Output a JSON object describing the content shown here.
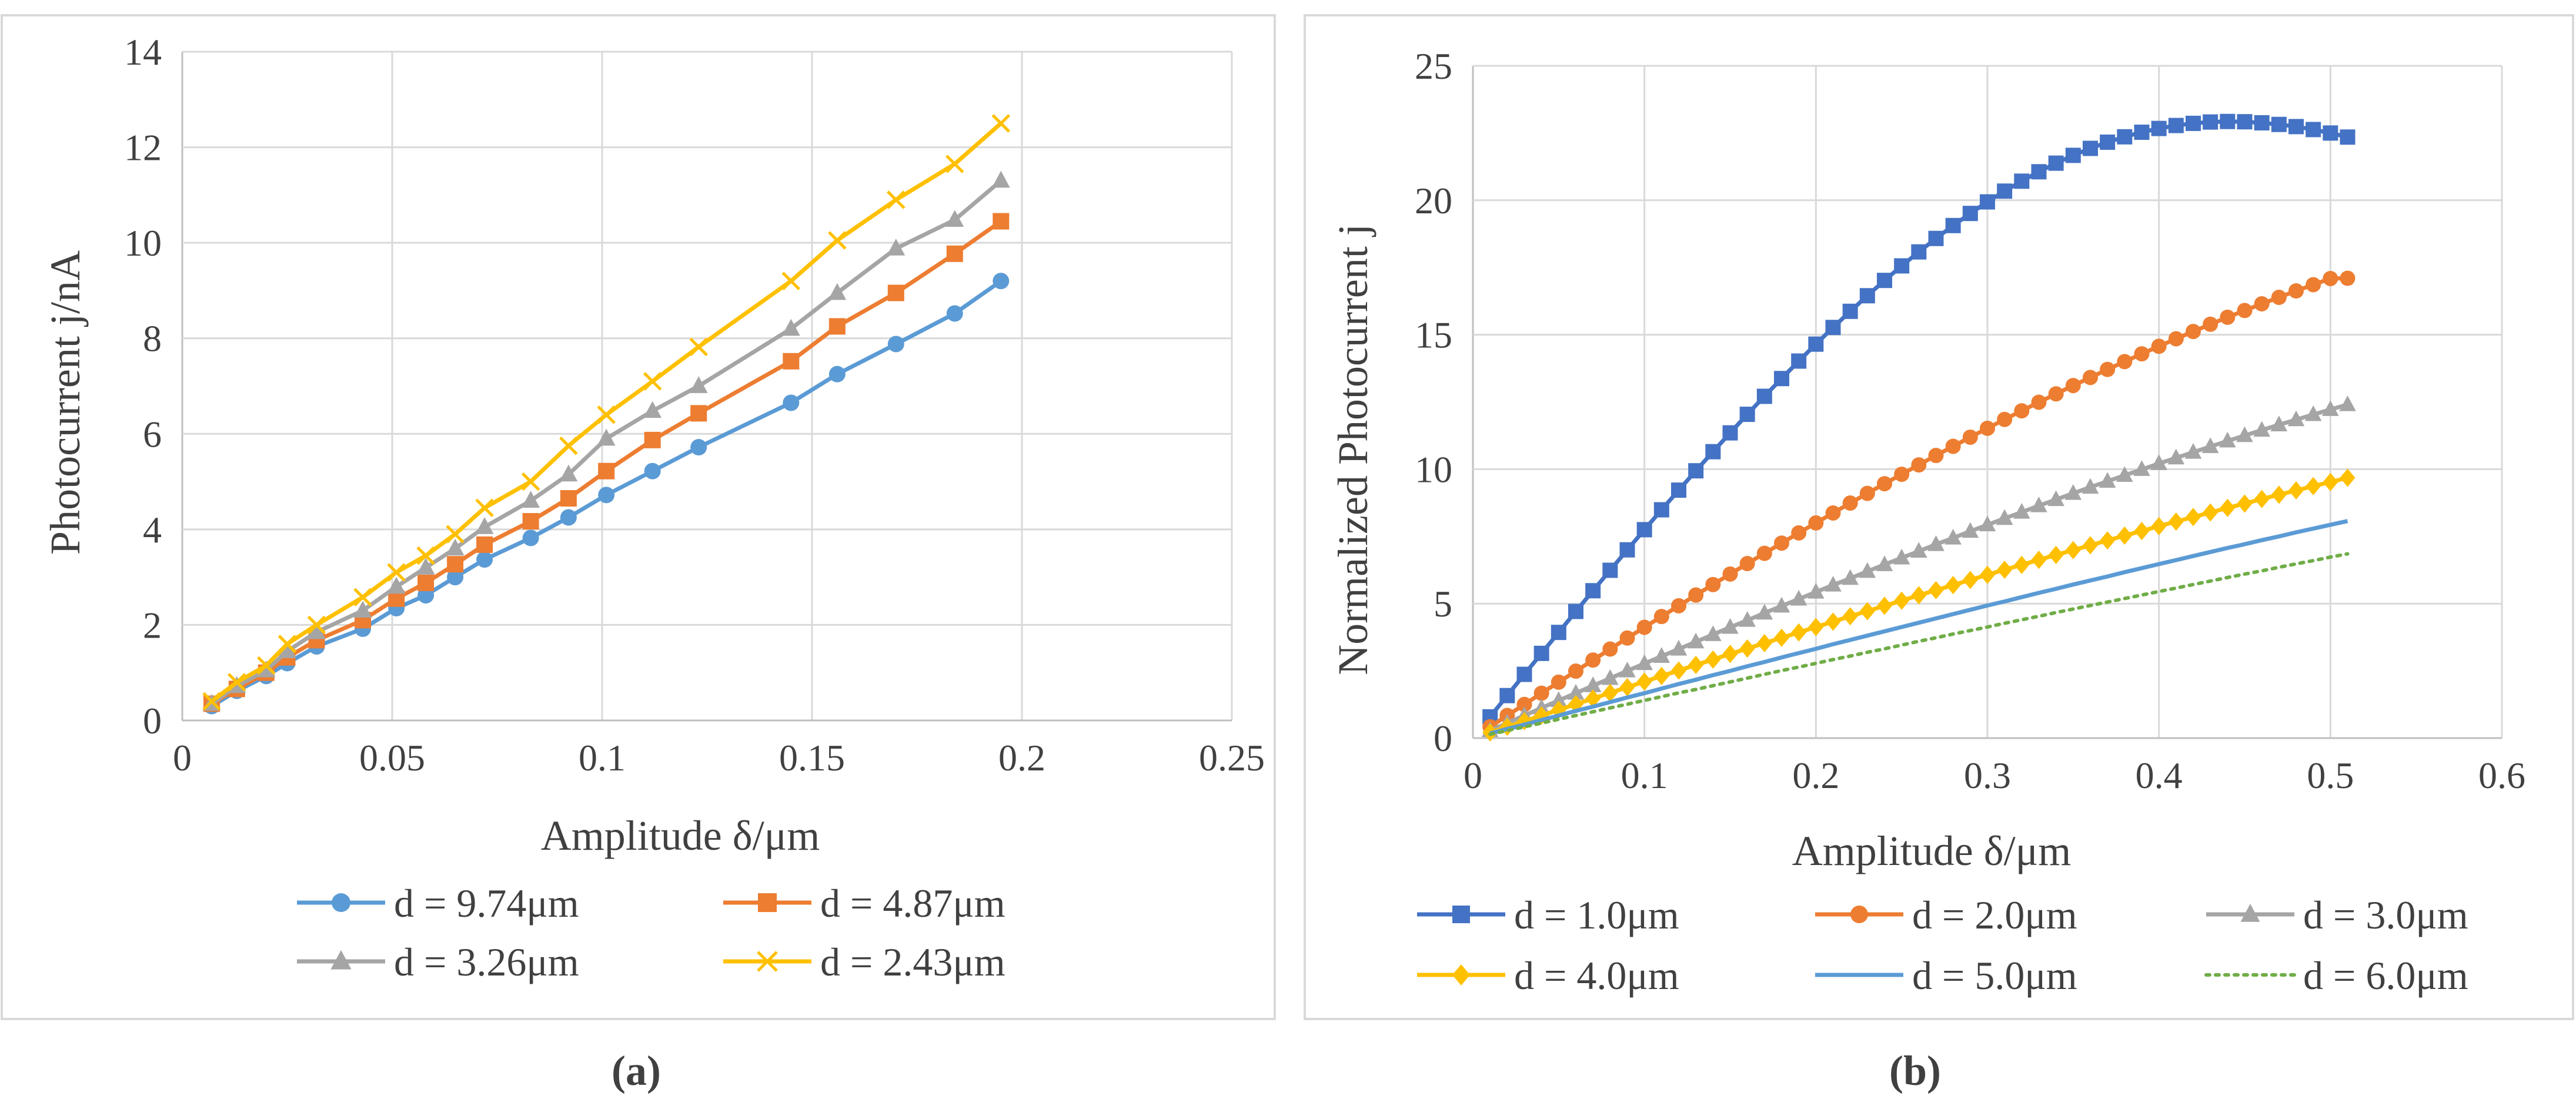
{
  "figure": {
    "label_a": "(a)",
    "label_b": "(b)"
  },
  "chart_data": [
    {
      "id": "a",
      "type": "line",
      "title": "",
      "xlabel": "Amplitude δ/μm",
      "ylabel": "Photocurrent  j/nA",
      "xlim": [
        0,
        0.25
      ],
      "ylim": [
        0,
        14
      ],
      "xticks": [
        0,
        0.05,
        0.1,
        0.15,
        0.2,
        0.25
      ],
      "xtick_labels": [
        "0",
        "0.05",
        "0.1",
        "0.15",
        "0.2",
        "0.25"
      ],
      "yticks": [
        0,
        2,
        4,
        6,
        8,
        10,
        12,
        14
      ],
      "ytick_labels": [
        "0",
        "2",
        "4",
        "6",
        "8",
        "10",
        "12",
        "14"
      ],
      "grid": true,
      "legend_position": "bottom",
      "x": [
        0.007,
        0.013,
        0.02,
        0.025,
        0.032,
        0.043,
        0.051,
        0.058,
        0.065,
        0.072,
        0.083,
        0.092,
        0.101,
        0.112,
        0.123,
        0.145,
        0.156,
        0.17,
        0.184,
        0.195
      ],
      "series": [
        {
          "name": "d = 9.74μm",
          "color": "#5B9BD5",
          "marker": "circle",
          "values": [
            0.3,
            0.62,
            0.93,
            1.2,
            1.55,
            1.92,
            2.35,
            2.62,
            3.0,
            3.37,
            3.82,
            4.25,
            4.72,
            5.22,
            5.72,
            6.65,
            7.25,
            7.88,
            8.52,
            9.2
          ]
        },
        {
          "name": "d = 4.87μm",
          "color": "#ED7D31",
          "marker": "square",
          "values": [
            0.35,
            0.66,
            1.0,
            1.32,
            1.68,
            2.1,
            2.55,
            2.88,
            3.27,
            3.68,
            4.17,
            4.65,
            5.22,
            5.87,
            6.43,
            7.52,
            8.25,
            8.95,
            9.77,
            10.45
          ]
        },
        {
          "name": "d = 3.26μm",
          "color": "#A5A5A5",
          "marker": "triangle",
          "values": [
            0.35,
            0.72,
            1.05,
            1.45,
            1.85,
            2.3,
            2.8,
            3.2,
            3.6,
            4.05,
            4.6,
            5.15,
            5.9,
            6.48,
            7.0,
            8.2,
            8.95,
            9.88,
            10.48,
            11.3
          ]
        },
        {
          "name": "d = 2.43μm",
          "color": "#FFC000",
          "marker": "x",
          "values": [
            0.4,
            0.8,
            1.15,
            1.6,
            2.0,
            2.58,
            3.1,
            3.45,
            3.9,
            4.45,
            5.0,
            5.75,
            6.4,
            7.1,
            7.82,
            9.2,
            10.05,
            10.9,
            11.65,
            12.5
          ]
        }
      ]
    },
    {
      "id": "b",
      "type": "line",
      "title": "",
      "xlabel": "Amplitude δ/μm",
      "ylabel": "Normalized Photocurrent j",
      "xlim": [
        0,
        0.6
      ],
      "ylim": [
        0,
        25
      ],
      "xticks": [
        0,
        0.1,
        0.2,
        0.3,
        0.4,
        0.5,
        0.6
      ],
      "xtick_labels": [
        "0",
        "0.1",
        "0.2",
        "0.3",
        "0.4",
        "0.5",
        "0.6"
      ],
      "yticks": [
        0,
        5,
        10,
        15,
        20,
        25
      ],
      "ytick_labels": [
        "0",
        "5",
        "10",
        "15",
        "20",
        "25"
      ],
      "grid": true,
      "legend_position": "bottom",
      "x_start": 0.01,
      "x_end": 0.51,
      "x_step": 0.01,
      "series": [
        {
          "name": "d = 1.0μm",
          "color": "#4472C4",
          "marker": "square",
          "line": "solid",
          "values": [
            0.79,
            1.58,
            2.37,
            3.15,
            3.93,
            4.71,
            5.48,
            6.24,
            7.0,
            7.75,
            8.49,
            9.22,
            9.94,
            10.65,
            11.35,
            12.04,
            12.71,
            13.37,
            14.02,
            14.65,
            15.27,
            15.87,
            16.45,
            17.02,
            17.56,
            18.08,
            18.58,
            19.06,
            19.51,
            19.94,
            20.34,
            20.71,
            21.06,
            21.38,
            21.67,
            21.93,
            22.16,
            22.36,
            22.53,
            22.67,
            22.78,
            22.86,
            22.91,
            22.93,
            22.92,
            22.88,
            22.82,
            22.74,
            22.63,
            22.5,
            22.35
          ]
        },
        {
          "name": "d = 2.0μm",
          "color": "#ED7D31",
          "marker": "circle",
          "line": "solid",
          "values": [
            0.42,
            0.84,
            1.25,
            1.67,
            2.08,
            2.49,
            2.9,
            3.31,
            3.72,
            4.12,
            4.52,
            4.92,
            5.32,
            5.71,
            6.1,
            6.49,
            6.87,
            7.25,
            7.63,
            8.0,
            8.37,
            8.74,
            9.1,
            9.46,
            9.81,
            10.16,
            10.51,
            10.85,
            11.19,
            11.52,
            11.85,
            12.17,
            12.49,
            12.8,
            13.11,
            13.41,
            13.71,
            14.0,
            14.29,
            14.57,
            14.85,
            15.12,
            15.39,
            15.65,
            15.9,
            16.15,
            16.39,
            16.63,
            16.86,
            17.09,
            17.1
          ]
        },
        {
          "name": "d = 3.0μm",
          "color": "#A5A5A5",
          "marker": "triangle",
          "line": "solid",
          "values": [
            0.28,
            0.56,
            0.84,
            1.12,
            1.4,
            1.67,
            1.95,
            2.22,
            2.5,
            2.77,
            3.04,
            3.31,
            3.58,
            3.85,
            4.12,
            4.38,
            4.65,
            4.91,
            5.17,
            5.43,
            5.69,
            5.94,
            6.2,
            6.45,
            6.7,
            6.95,
            7.2,
            7.44,
            7.69,
            7.93,
            8.17,
            8.4,
            8.64,
            8.87,
            9.1,
            9.33,
            9.55,
            9.77,
            9.99,
            10.21,
            10.42,
            10.63,
            10.84,
            11.05,
            11.25,
            11.45,
            11.65,
            11.84,
            12.03,
            12.22,
            12.4
          ]
        },
        {
          "name": "d = 4.0μm",
          "color": "#FFC000",
          "marker": "diamond",
          "line": "solid",
          "values": [
            0.21,
            0.42,
            0.63,
            0.84,
            1.05,
            1.26,
            1.47,
            1.68,
            1.89,
            2.1,
            2.31,
            2.51,
            2.72,
            2.92,
            3.13,
            3.33,
            3.53,
            3.73,
            3.93,
            4.13,
            4.33,
            4.53,
            4.72,
            4.92,
            5.11,
            5.31,
            5.5,
            5.69,
            5.88,
            6.07,
            6.26,
            6.44,
            6.63,
            6.81,
            6.99,
            7.17,
            7.35,
            7.53,
            7.7,
            7.88,
            8.05,
            8.22,
            8.39,
            8.56,
            8.72,
            8.89,
            9.05,
            9.21,
            9.37,
            9.52,
            9.68
          ]
        },
        {
          "name": "d = 5.0μm",
          "color": "#5B9BD5",
          "marker": "none",
          "line": "solid",
          "values": [
            0.17,
            0.34,
            0.5,
            0.67,
            0.84,
            1.01,
            1.17,
            1.34,
            1.51,
            1.67,
            1.84,
            2.01,
            2.17,
            2.34,
            2.5,
            2.67,
            2.83,
            3.0,
            3.16,
            3.32,
            3.49,
            3.65,
            3.81,
            3.97,
            4.13,
            4.29,
            4.45,
            4.61,
            4.77,
            4.93,
            5.08,
            5.24,
            5.4,
            5.55,
            5.71,
            5.86,
            6.01,
            6.17,
            6.32,
            6.47,
            6.62,
            6.77,
            6.92,
            7.07,
            7.21,
            7.36,
            7.5,
            7.65,
            7.79,
            7.93,
            8.07
          ]
        },
        {
          "name": "d = 6.0μm",
          "color": "#70AD47",
          "marker": "none",
          "line": "dotted",
          "values": [
            0.14,
            0.28,
            0.42,
            0.56,
            0.7,
            0.84,
            0.98,
            1.12,
            1.26,
            1.4,
            1.54,
            1.68,
            1.81,
            1.95,
            2.09,
            2.23,
            2.37,
            2.51,
            2.64,
            2.78,
            2.92,
            3.05,
            3.19,
            3.32,
            3.46,
            3.6,
            3.73,
            3.87,
            4.0,
            4.13,
            4.27,
            4.4,
            4.53,
            4.67,
            4.8,
            4.93,
            5.06,
            5.19,
            5.32,
            5.45,
            5.58,
            5.71,
            5.84,
            5.97,
            6.1,
            6.22,
            6.35,
            6.48,
            6.6,
            6.73,
            6.85
          ]
        }
      ]
    }
  ]
}
